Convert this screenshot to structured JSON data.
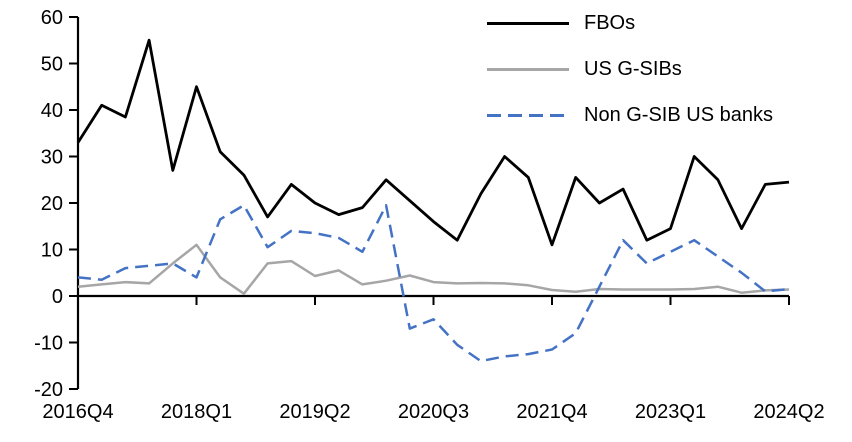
{
  "chart_data": {
    "type": "line",
    "title": "",
    "xlabel": "",
    "ylabel": "",
    "ylim": [
      -20,
      60
    ],
    "yticks": [
      60,
      50,
      40,
      30,
      20,
      10,
      0,
      -10,
      -20
    ],
    "grid": false,
    "legend_position": "top-right",
    "categories": [
      "2016Q4",
      "2017Q1",
      "2017Q2",
      "2017Q3",
      "2017Q4",
      "2018Q1",
      "2018Q2",
      "2018Q3",
      "2018Q4",
      "2019Q1",
      "2019Q2",
      "2019Q3",
      "2019Q4",
      "2020Q1",
      "2020Q2",
      "2020Q3",
      "2020Q4",
      "2021Q1",
      "2021Q2",
      "2021Q3",
      "2021Q4",
      "2022Q1",
      "2022Q2",
      "2022Q3",
      "2022Q4",
      "2023Q1",
      "2023Q2",
      "2023Q3",
      "2023Q4",
      "2024Q1",
      "2024Q2"
    ],
    "x_tick_labels": [
      "2016Q4",
      "2018Q1",
      "2019Q2",
      "2020Q3",
      "2021Q4",
      "2023Q1",
      "2024Q2"
    ],
    "x_tick_indices": [
      0,
      5,
      10,
      15,
      20,
      25,
      30
    ],
    "series": [
      {
        "name": "FBOs",
        "color": "#000000",
        "dash": "solid",
        "values": [
          33,
          41,
          38.5,
          55,
          27,
          45,
          31,
          26,
          17,
          24,
          20,
          17.5,
          19,
          25,
          20.5,
          16,
          12,
          22,
          30,
          25.5,
          11,
          25.5,
          20,
          23,
          12,
          14.5,
          30,
          25,
          14.5,
          24,
          24.5
        ]
      },
      {
        "name": "US G-SIBs",
        "color": "#a6a6a6",
        "dash": "solid",
        "values": [
          2,
          2.5,
          3,
          2.7,
          7,
          11,
          4,
          0.5,
          7,
          7.5,
          4.3,
          5.5,
          2.5,
          3.3,
          4.4,
          3,
          2.7,
          2.8,
          2.7,
          2.3,
          1.3,
          0.9,
          1.5,
          1.4,
          1.4,
          1.4,
          1.5,
          2,
          0.7,
          1.2,
          1.4
        ]
      },
      {
        "name": "Non G-SIB US banks",
        "color": "#4472c4",
        "dash": "dashed",
        "values": [
          4,
          3.5,
          6,
          6.5,
          7,
          4,
          16.5,
          19.5,
          10.5,
          14,
          13.5,
          12.5,
          9.5,
          19.5,
          -7,
          -5,
          -10.5,
          -14,
          -13,
          -12.5,
          -11.5,
          -8,
          2,
          12,
          7,
          9.5,
          12,
          8.5,
          5,
          1,
          1.5
        ]
      }
    ]
  }
}
